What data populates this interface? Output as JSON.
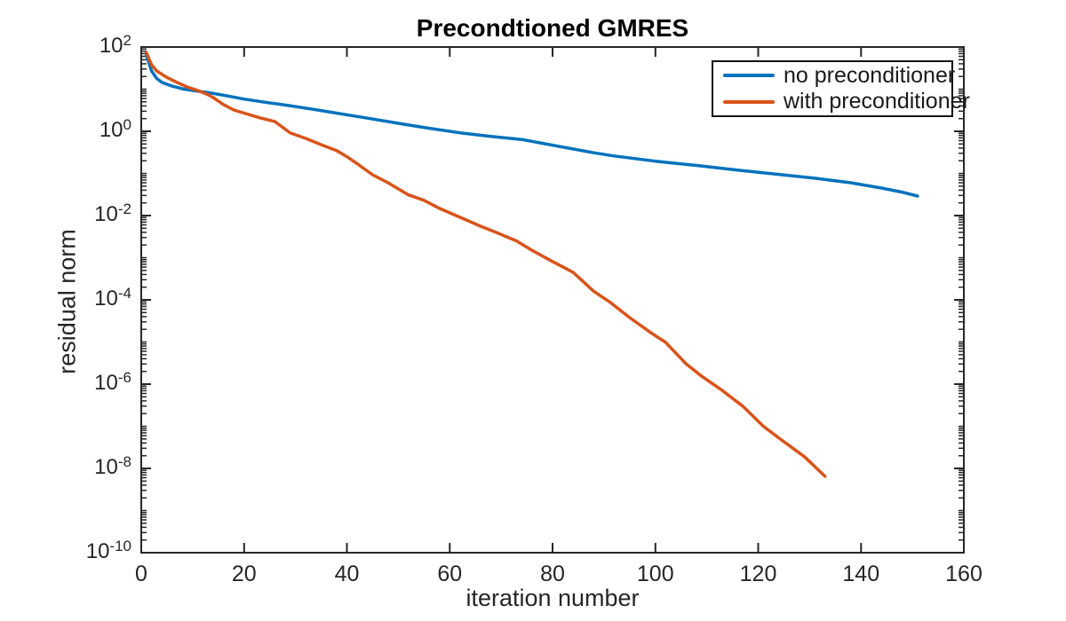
{
  "figure": {
    "background": "#ffffff",
    "axis_color": "#262626",
    "text_color": "#1a1a1a"
  },
  "chart_data": {
    "type": "line",
    "title": "Precondtioned GMRES",
    "xlabel": "iteration number",
    "ylabel": "residual norm",
    "x_ticks": [
      0,
      20,
      40,
      60,
      80,
      100,
      120,
      140,
      160
    ],
    "y_tick_exponents": [
      2,
      0,
      -2,
      -4,
      -6,
      -8,
      -10
    ],
    "xlim": [
      0,
      160
    ],
    "ylim": [
      1e-10,
      100
    ],
    "y_scale": "log10",
    "grid": false,
    "legend_position": "top-right",
    "series": [
      {
        "name": "no preconditioner",
        "color": "#0072BD",
        "points": [
          [
            1,
            65
          ],
          [
            2,
            27
          ],
          [
            3,
            18
          ],
          [
            4,
            14.5
          ],
          [
            6,
            11.8
          ],
          [
            8,
            10.2
          ],
          [
            10,
            9.3
          ],
          [
            13,
            8.3
          ],
          [
            16,
            7.2
          ],
          [
            20,
            5.8
          ],
          [
            24,
            4.9
          ],
          [
            28,
            4.2
          ],
          [
            33,
            3.4
          ],
          [
            38,
            2.7
          ],
          [
            44,
            2.05
          ],
          [
            50,
            1.55
          ],
          [
            56,
            1.18
          ],
          [
            62,
            0.92
          ],
          [
            68,
            0.76
          ],
          [
            74,
            0.64
          ],
          [
            78,
            0.52
          ],
          [
            83,
            0.4
          ],
          [
            88,
            0.31
          ],
          [
            92,
            0.26
          ],
          [
            100,
            0.195
          ],
          [
            108,
            0.155
          ],
          [
            116,
            0.12
          ],
          [
            124,
            0.095
          ],
          [
            131,
            0.077
          ],
          [
            138,
            0.06
          ],
          [
            144,
            0.045
          ],
          [
            148,
            0.036
          ],
          [
            151,
            0.029
          ]
        ]
      },
      {
        "name": "with preconditioner",
        "color": "#D95319",
        "points": [
          [
            1,
            74
          ],
          [
            2,
            38
          ],
          [
            3,
            27
          ],
          [
            5,
            19
          ],
          [
            7,
            14.4
          ],
          [
            9,
            11.2
          ],
          [
            11,
            9.3
          ],
          [
            13,
            7.4
          ],
          [
            14,
            6.3
          ],
          [
            16,
            4.3
          ],
          [
            18,
            3.2
          ],
          [
            20,
            2.7
          ],
          [
            23,
            2.1
          ],
          [
            26,
            1.7
          ],
          [
            29,
            0.91
          ],
          [
            32,
            0.68
          ],
          [
            35,
            0.48
          ],
          [
            38,
            0.35
          ],
          [
            40,
            0.25
          ],
          [
            42,
            0.17
          ],
          [
            45,
            0.093
          ],
          [
            48,
            0.06
          ],
          [
            52,
            0.031
          ],
          [
            55,
            0.023
          ],
          [
            58,
            0.0148
          ],
          [
            62,
            0.0091
          ],
          [
            66,
            0.0056
          ],
          [
            69,
            0.004
          ],
          [
            73,
            0.0025
          ],
          [
            76,
            0.0015
          ],
          [
            80,
            0.00081
          ],
          [
            84,
            0.00045
          ],
          [
            88,
            0.00016
          ],
          [
            91,
            9.1e-05
          ],
          [
            95,
            3.8e-05
          ],
          [
            99,
            1.7e-05
          ],
          [
            102,
            9.8e-06
          ],
          [
            106,
            3e-06
          ],
          [
            109,
            1.55e-06
          ],
          [
            113,
            7.1e-07
          ],
          [
            117,
            3e-07
          ],
          [
            121,
            1e-07
          ],
          [
            125,
            4.3e-08
          ],
          [
            129,
            1.9e-08
          ],
          [
            133,
            6.5e-09
          ]
        ]
      }
    ]
  },
  "legend": {
    "items": [
      {
        "label": "no preconditioner",
        "color": "#0072BD"
      },
      {
        "label": "with preconditioner",
        "color": "#D95319"
      }
    ]
  }
}
